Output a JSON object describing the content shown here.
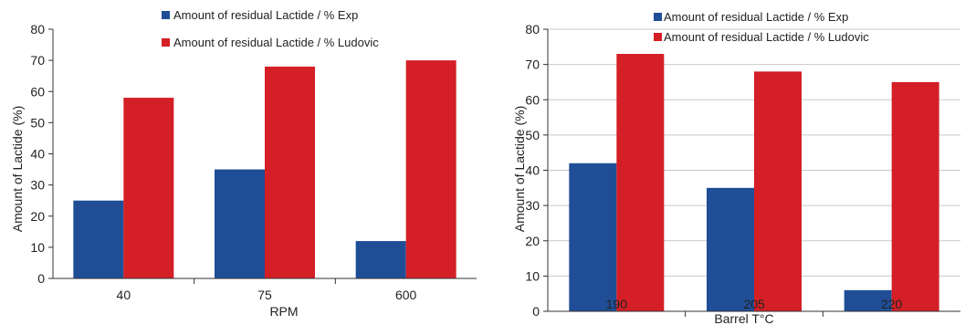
{
  "colors": {
    "exp": "#1f4e96",
    "ludovic": "#d41f26"
  },
  "chart_data": [
    {
      "type": "bar",
      "categories": [
        "40",
        "75",
        "600"
      ],
      "series": [
        {
          "name": "Amount of residual Lactide / % Exp",
          "values": [
            25,
            35,
            12
          ]
        },
        {
          "name": "Amount of residual Lactide / % Ludovic",
          "values": [
            58,
            68,
            70
          ]
        }
      ],
      "title": "",
      "xlabel": "RPM",
      "ylabel": "Amount of Lactide (%)",
      "ylim": [
        0,
        80
      ],
      "yticks": [
        "0",
        "10",
        "20",
        "30",
        "40",
        "50",
        "60",
        "70",
        "80"
      ],
      "grid": false,
      "legend": "top"
    },
    {
      "type": "bar",
      "categories": [
        "190",
        "205",
        "220"
      ],
      "series": [
        {
          "name": "Amount of residual Lactide / % Exp",
          "values": [
            42,
            35,
            6
          ]
        },
        {
          "name": "Amount of residual Lactide / % Ludovic",
          "values": [
            73,
            68,
            65
          ]
        }
      ],
      "title": "",
      "xlabel": "Barrel T°C",
      "ylabel": "Amount of Lactide (%)",
      "ylim": [
        0,
        80
      ],
      "yticks": [
        "0",
        "10",
        "20",
        "30",
        "40",
        "50",
        "60",
        "70",
        "80"
      ],
      "grid": true,
      "legend": "top"
    }
  ]
}
